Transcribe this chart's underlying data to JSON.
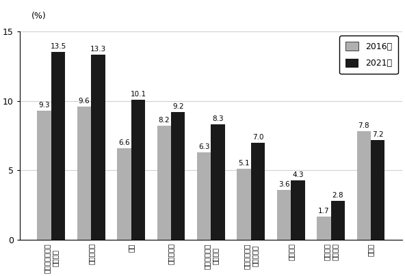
{
  "categories": [
    "パソコンなどの\n情報処理",
    "家政・家事",
    "英語",
    "芸術・文化",
    "人文・社会・\n自然科学",
    "ビジネス関係\n商業実務・",
    "介護関係",
    "英語以外\nの外国語",
    "その他"
  ],
  "values_2016": [
    9.3,
    9.6,
    6.6,
    8.2,
    6.3,
    5.1,
    3.6,
    1.7,
    7.8
  ],
  "values_2021": [
    13.5,
    13.3,
    10.1,
    9.2,
    8.3,
    7.0,
    4.3,
    2.8,
    7.2
  ],
  "color_2016": "#b0b0b0",
  "color_2021": "#1a1a1a",
  "ylabel": "(%)",
  "ylim": [
    0,
    15
  ],
  "yticks": [
    0,
    5,
    10,
    15
  ],
  "legend_2016": "2016年",
  "legend_2021": "2021年",
  "bar_width": 0.35,
  "ylabel_fontsize": 9,
  "tick_label_fontsize": 7.5,
  "value_fontsize": 7.5,
  "legend_fontsize": 9,
  "grid_color": "#d0d0d0"
}
